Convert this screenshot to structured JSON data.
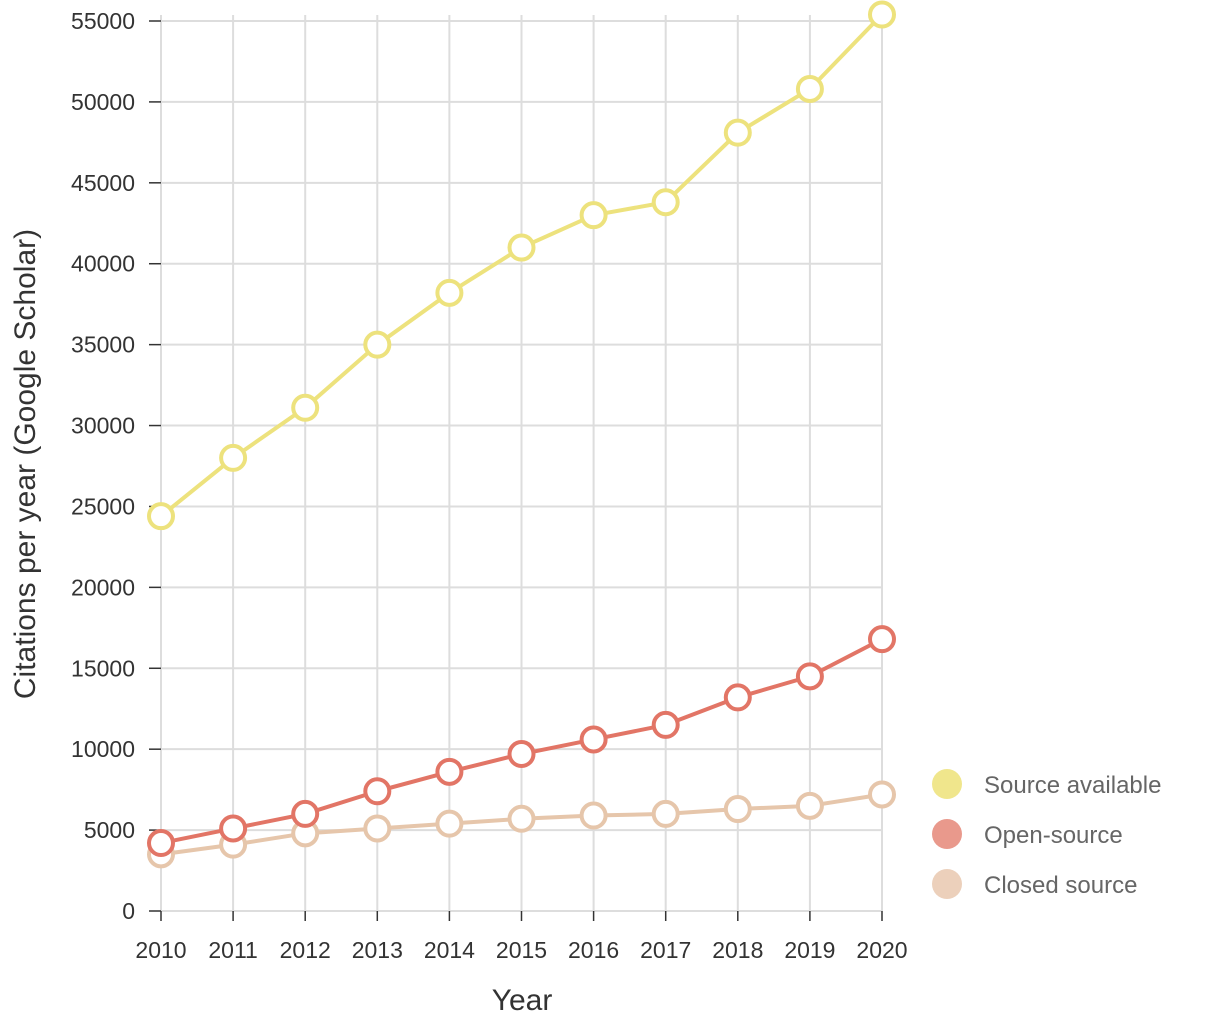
{
  "chart_data": {
    "type": "line",
    "title": "",
    "xlabel": "Year",
    "ylabel": "Citations per year (Google Scholar)",
    "x": [
      2010,
      2011,
      2012,
      2013,
      2014,
      2015,
      2016,
      2017,
      2018,
      2019,
      2020
    ],
    "xlim": [
      2010,
      2020
    ],
    "ylim": [
      0,
      55000
    ],
    "yticks": [
      0,
      5000,
      10000,
      15000,
      20000,
      25000,
      30000,
      35000,
      40000,
      45000,
      50000,
      55000
    ],
    "grid": true,
    "legend_position": "bottom-right",
    "series": [
      {
        "name": "Source available",
        "color": "#ede27d",
        "legend_color": "#f0e68c",
        "values": [
          24400,
          28000,
          31100,
          35000,
          38200,
          41000,
          43000,
          43800,
          48100,
          50800,
          55400
        ]
      },
      {
        "name": "Open-source",
        "color": "#e27566",
        "legend_color": "#e9998c",
        "values": [
          4200,
          5100,
          6000,
          7400,
          8600,
          9700,
          10600,
          11500,
          13200,
          14500,
          16800
        ]
      },
      {
        "name": "Closed source",
        "color": "#e6c6ab",
        "legend_color": "#ecd0bb",
        "values": [
          3500,
          4100,
          4800,
          5100,
          5400,
          5700,
          5900,
          6000,
          6300,
          6500,
          7200
        ]
      }
    ]
  }
}
